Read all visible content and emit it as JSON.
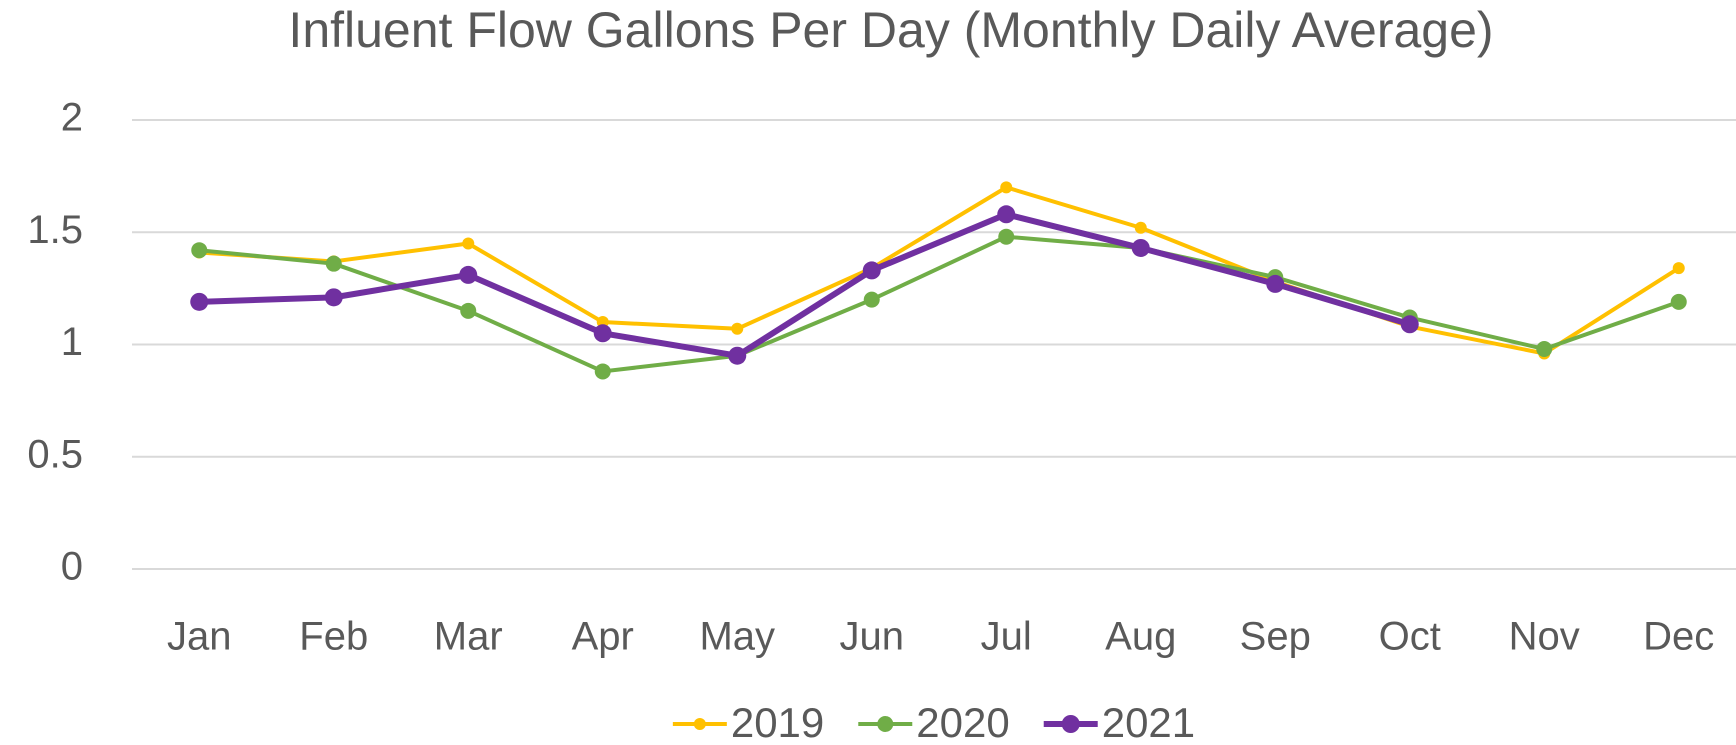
{
  "chart_data": {
    "type": "line",
    "title": "Influent Flow Gallons Per Day (Monthly Daily Average)",
    "categories": [
      "Jan",
      "Feb",
      "Mar",
      "Apr",
      "May",
      "Jun",
      "Jul",
      "Aug",
      "Sep",
      "Oct",
      "Nov",
      "Dec"
    ],
    "series": [
      {
        "name": "2019",
        "color": "#FFC000",
        "values": [
          1.41,
          1.37,
          1.45,
          1.1,
          1.07,
          1.34,
          1.7,
          1.52,
          1.28,
          1.08,
          0.96,
          1.34
        ]
      },
      {
        "name": "2020",
        "color": "#70AD47",
        "values": [
          1.42,
          1.36,
          1.15,
          0.88,
          0.95,
          1.2,
          1.48,
          1.43,
          1.3,
          1.12,
          0.98,
          1.19
        ]
      },
      {
        "name": "2021",
        "color": "#7030A0",
        "values": [
          1.19,
          1.21,
          1.31,
          1.05,
          0.95,
          1.33,
          1.58,
          1.43,
          1.27,
          1.09,
          null,
          null
        ]
      }
    ],
    "ylim": [
      0,
      2
    ],
    "yticks": [
      0,
      0.5,
      1,
      1.5,
      2
    ],
    "grid": true,
    "legend": "bottom"
  }
}
